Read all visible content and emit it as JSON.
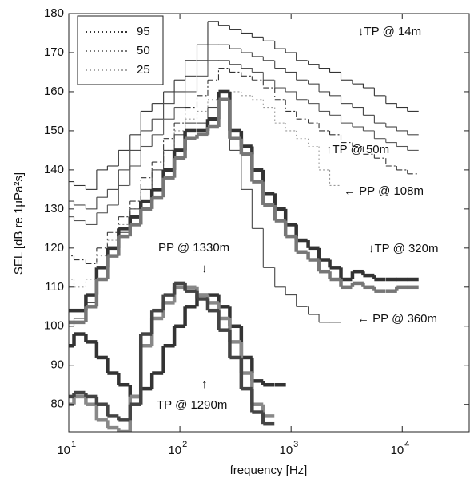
{
  "chart_data": {
    "type": "step",
    "xlabel": "frequency [Hz]",
    "ylabel": "SEL [dB re 1μPa²s]",
    "xscale": "log",
    "xlim": [
      10,
      40000
    ],
    "ylim": [
      73,
      180
    ],
    "xticks": [
      {
        "value": 10,
        "label": "10",
        "exponent": "1"
      },
      {
        "value": 100,
        "label": "10",
        "exponent": "2"
      },
      {
        "value": 1000,
        "label": "10",
        "exponent": "3"
      },
      {
        "value": 10000,
        "label": "10",
        "exponent": "4"
      }
    ],
    "yticks": [
      80,
      90,
      100,
      110,
      120,
      130,
      140,
      150,
      160,
      170,
      180
    ],
    "legend_position": "upper left",
    "legend": [
      {
        "label": "95",
        "color": "#333333",
        "style": "dotted"
      },
      {
        "label": "50",
        "color": "#777777",
        "style": "dotted"
      },
      {
        "label": "25",
        "color": "#aaaaaa",
        "style": "dotted"
      }
    ],
    "annotations": [
      "↓TP @ 14m",
      "↑TP @ 50m",
      "← PP @ 108m",
      "↓TP @ 320m",
      "← PP @ 360m",
      "PP @ 1330m",
      "↓",
      "↑",
      "TP @ 1290m"
    ],
    "x": [
      10,
      12.5,
      16,
      20,
      25,
      31.5,
      40,
      50,
      63,
      80,
      100,
      125,
      160,
      200,
      250,
      315,
      400,
      500,
      630,
      800,
      1000,
      1250,
      1600,
      2000,
      2500,
      3150,
      4000,
      5000,
      6300,
      8000,
      10000,
      12500
    ],
    "series": [
      {
        "color": "#333333",
        "style": "solid",
        "weight": "thin",
        "values": [
          137,
          136,
          135,
          140,
          141,
          145,
          149,
          155,
          157,
          160,
          163,
          168,
          172,
          178,
          177,
          176,
          175,
          174,
          173,
          171,
          170,
          168,
          167,
          166,
          165,
          163,
          162,
          161,
          159,
          157,
          156,
          155
        ]
      },
      {
        "color": "#444444",
        "style": "solid",
        "weight": "thin",
        "values": [
          132,
          131,
          130,
          133,
          135,
          140,
          145,
          150,
          153,
          157,
          160,
          164,
          168,
          172,
          172,
          171,
          170,
          169,
          168,
          166,
          165,
          163,
          162,
          160,
          159,
          157,
          156,
          154,
          152,
          151,
          150,
          149
        ]
      },
      {
        "color": "#555555",
        "style": "solid",
        "weight": "thin",
        "values": [
          128,
          127,
          126,
          129,
          131,
          136,
          141,
          146,
          149,
          153,
          156,
          160,
          164,
          168,
          168,
          167,
          166,
          165,
          163,
          161,
          160,
          158,
          157,
          155,
          154,
          152,
          151,
          150,
          148,
          147,
          146,
          145
        ]
      },
      {
        "color": "#333333",
        "style": "dashdot",
        "weight": "thin",
        "values": [
          118,
          117,
          116,
          120,
          124,
          128,
          132,
          138,
          142,
          148,
          152,
          156,
          159,
          163,
          166,
          165,
          164,
          163,
          161,
          158,
          155,
          153,
          152,
          150,
          149,
          147,
          146,
          144,
          143,
          141,
          140,
          139
        ]
      },
      {
        "color": "#999999",
        "style": "dotted",
        "weight": "thin",
        "values": [
          112,
          110,
          112,
          118,
          122,
          126,
          130,
          135,
          140,
          145,
          150,
          153,
          155,
          158,
          160,
          160,
          159,
          158,
          156,
          152,
          150,
          148,
          146,
          140,
          136,
          null,
          null,
          null,
          null,
          null,
          null,
          null
        ]
      },
      {
        "color": "#444444",
        "style": "solid",
        "weight": "thin",
        "values": [
          100,
          102,
          106,
          112,
          118,
          124,
          130,
          135,
          140,
          145,
          149,
          152,
          152,
          156,
          158,
          145,
          135,
          125,
          115,
          110,
          108,
          105,
          103,
          101,
          101,
          null,
          null,
          null,
          null,
          null,
          null,
          null
        ]
      },
      {
        "color": "#333333",
        "style": "solid",
        "weight": "thick",
        "values": [
          104,
          104,
          108,
          115,
          120,
          125,
          128,
          132,
          135,
          140,
          145,
          150,
          150,
          153,
          160,
          150,
          146,
          140,
          134,
          130,
          126,
          122,
          120,
          117,
          115,
          112,
          114,
          113,
          112,
          112,
          112,
          112
        ]
      },
      {
        "color": "#777777",
        "style": "solid",
        "weight": "thick",
        "values": [
          101,
          101,
          105,
          112,
          118,
          123,
          126,
          130,
          133,
          138,
          143,
          148,
          149,
          151,
          158,
          148,
          144,
          137,
          131,
          127,
          123,
          119,
          117,
          114,
          112,
          110,
          111,
          110,
          109,
          109,
          110,
          110
        ]
      },
      {
        "color": "#333333",
        "style": "solid",
        "weight": "thick",
        "values": [
          95,
          98,
          96,
          92,
          88,
          85,
          82,
          84,
          88,
          95,
          100,
          105,
          108,
          108,
          105,
          100,
          92,
          86,
          85,
          85,
          null,
          null,
          null,
          null,
          null,
          null,
          null,
          null,
          null,
          null,
          null,
          null
        ]
      },
      {
        "color": "#888888",
        "style": "solid",
        "weight": "thick",
        "values": [
          80,
          82,
          80,
          76,
          74,
          73,
          82,
          95,
          102,
          106,
          110,
          110,
          108,
          106,
          102,
          96,
          88,
          80,
          77,
          null,
          null,
          null,
          null,
          null,
          null,
          null,
          null,
          null,
          null,
          null,
          null,
          null
        ]
      },
      {
        "color": "#444444",
        "style": "solid",
        "weight": "thick",
        "values": [
          82,
          83,
          82,
          80,
          77,
          76,
          80,
          98,
          104,
          108,
          111,
          109,
          107,
          104,
          99,
          92,
          84,
          78,
          75,
          null,
          null,
          null,
          null,
          null,
          null,
          null,
          null,
          null,
          null,
          null,
          null,
          null
        ]
      }
    ]
  }
}
